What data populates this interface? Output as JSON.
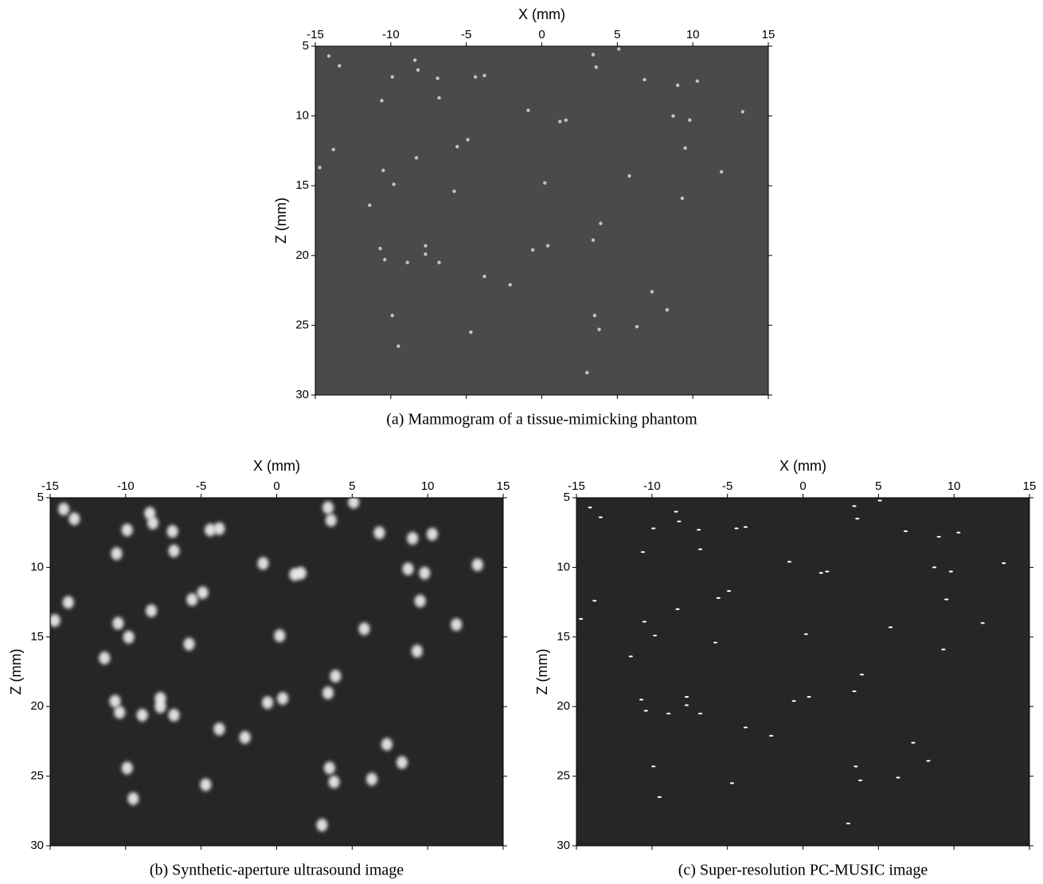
{
  "chart_data": [
    {
      "type": "scatter",
      "caption": "(a) Mammogram of a tissue-mimicking phantom",
      "xlabel": "X (mm)",
      "ylabel": "Z (mm)",
      "xlim": [
        -15,
        15
      ],
      "ylim": [
        30,
        5
      ],
      "xticks": [
        -15,
        -10,
        -5,
        0,
        5,
        10,
        15
      ],
      "yticks": [
        5,
        10,
        15,
        20,
        25,
        30
      ],
      "background": "#4a4a4a",
      "color": "#d8d8d8",
      "marker": "dot",
      "x": [
        -14.1,
        -13.4,
        -8.4,
        -8.2,
        -9.9,
        -6.9,
        -4.4,
        -3.8,
        3.4,
        5.1,
        3.6,
        6.8,
        9.0,
        10.3,
        -10.6,
        -6.8,
        -0.9,
        1.2,
        1.6,
        8.7,
        9.8,
        13.3,
        -13.8,
        -5.6,
        -4.9,
        9.5,
        -14.7,
        -10.5,
        -8.3,
        -9.8,
        -5.8,
        0.2,
        5.8,
        11.9,
        -11.4,
        9.3,
        3.9,
        -10.7,
        -10.4,
        -7.7,
        -7.7,
        -8.9,
        -6.8,
        -0.6,
        0.4,
        3.4,
        -3.8,
        -2.1,
        7.3,
        8.3,
        -9.9,
        3.5,
        3.8,
        -4.7,
        6.3,
        -9.5,
        3.0
      ],
      "y": [
        5.7,
        6.4,
        6.0,
        6.7,
        7.2,
        7.3,
        7.2,
        7.1,
        5.6,
        5.2,
        6.5,
        7.4,
        7.8,
        7.5,
        8.9,
        8.7,
        9.6,
        10.4,
        10.3,
        10.0,
        10.3,
        9.7,
        12.4,
        12.2,
        11.7,
        12.3,
        13.7,
        13.9,
        13.0,
        14.9,
        15.4,
        14.8,
        14.3,
        14.0,
        16.4,
        15.9,
        17.7,
        19.5,
        20.3,
        19.3,
        19.9,
        20.5,
        20.5,
        19.6,
        19.3,
        18.9,
        21.5,
        22.1,
        22.6,
        23.9,
        24.3,
        24.3,
        25.3,
        25.5,
        25.1,
        26.5,
        28.4
      ]
    },
    {
      "type": "scatter",
      "caption": "(b) Synthetic-aperture ultrasound image",
      "xlabel": "X (mm)",
      "ylabel": "Z (mm)",
      "xlim": [
        -15,
        15
      ],
      "ylim": [
        30,
        5
      ],
      "xticks": [
        -15,
        -10,
        -5,
        0,
        5,
        10,
        15
      ],
      "yticks": [
        5,
        10,
        15,
        20,
        25,
        30
      ],
      "background": "#262626",
      "color": "#f2f2f2",
      "marker": "glow",
      "x": [
        -14.1,
        -13.4,
        -8.4,
        -8.2,
        -9.9,
        -6.9,
        -4.4,
        -3.8,
        3.4,
        5.1,
        3.6,
        6.8,
        9.0,
        10.3,
        -10.6,
        -6.8,
        -0.9,
        1.2,
        1.6,
        8.7,
        9.8,
        13.3,
        -13.8,
        -5.6,
        -4.9,
        9.5,
        -14.7,
        -10.5,
        -8.3,
        -9.8,
        -5.8,
        0.2,
        5.8,
        11.9,
        -11.4,
        9.3,
        3.9,
        -10.7,
        -10.4,
        -7.7,
        -7.7,
        -8.9,
        -6.8,
        -0.6,
        0.4,
        3.4,
        -3.8,
        -2.1,
        7.3,
        8.3,
        -9.9,
        3.5,
        3.8,
        -4.7,
        6.3,
        -9.5,
        3.0
      ],
      "y": [
        5.7,
        6.4,
        6.0,
        6.7,
        7.2,
        7.3,
        7.2,
        7.1,
        5.6,
        5.2,
        6.5,
        7.4,
        7.8,
        7.5,
        8.9,
        8.7,
        9.6,
        10.4,
        10.3,
        10.0,
        10.3,
        9.7,
        12.4,
        12.2,
        11.7,
        12.3,
        13.7,
        13.9,
        13.0,
        14.9,
        15.4,
        14.8,
        14.3,
        14.0,
        16.4,
        15.9,
        17.7,
        19.5,
        20.3,
        19.3,
        19.9,
        20.5,
        20.5,
        19.6,
        19.3,
        18.9,
        21.5,
        22.1,
        22.6,
        23.9,
        24.3,
        24.3,
        25.3,
        25.5,
        25.1,
        26.5,
        28.4
      ]
    },
    {
      "type": "scatter",
      "caption": "(c) Super-resolution PC-MUSIC image",
      "xlabel": "X (mm)",
      "ylabel": "Z (mm)",
      "xlim": [
        -15,
        15
      ],
      "ylim": [
        30,
        5
      ],
      "xticks": [
        -15,
        -10,
        -5,
        0,
        5,
        10,
        15
      ],
      "yticks": [
        5,
        10,
        15,
        20,
        25,
        30
      ],
      "background": "#262626",
      "color": "#ffffff",
      "marker": "dash",
      "x": [
        -14.1,
        -13.4,
        -8.4,
        -8.2,
        -9.9,
        -6.9,
        -4.4,
        -3.8,
        3.4,
        5.1,
        3.6,
        6.8,
        9.0,
        10.3,
        -10.6,
        -6.8,
        -0.9,
        1.2,
        1.6,
        8.7,
        9.8,
        13.3,
        -13.8,
        -5.6,
        -4.9,
        9.5,
        -14.7,
        -10.5,
        -8.3,
        -9.8,
        -5.8,
        0.2,
        5.8,
        11.9,
        -11.4,
        9.3,
        3.9,
        -10.7,
        -10.4,
        -7.7,
        -7.7,
        -8.9,
        -6.8,
        -0.6,
        0.4,
        3.4,
        -3.8,
        -2.1,
        7.3,
        8.3,
        -9.9,
        3.5,
        3.8,
        -4.7,
        6.3,
        -9.5,
        3.0
      ],
      "y": [
        5.7,
        6.4,
        6.0,
        6.7,
        7.2,
        7.3,
        7.2,
        7.1,
        5.6,
        5.2,
        6.5,
        7.4,
        7.8,
        7.5,
        8.9,
        8.7,
        9.6,
        10.4,
        10.3,
        10.0,
        10.3,
        9.7,
        12.4,
        12.2,
        11.7,
        12.3,
        13.7,
        13.9,
        13.0,
        14.9,
        15.4,
        14.8,
        14.3,
        14.0,
        16.4,
        15.9,
        17.7,
        19.5,
        20.3,
        19.3,
        19.9,
        20.5,
        20.5,
        19.6,
        19.3,
        18.9,
        21.5,
        22.1,
        22.6,
        23.9,
        24.3,
        24.3,
        25.3,
        25.5,
        25.1,
        26.5,
        28.4
      ]
    }
  ]
}
